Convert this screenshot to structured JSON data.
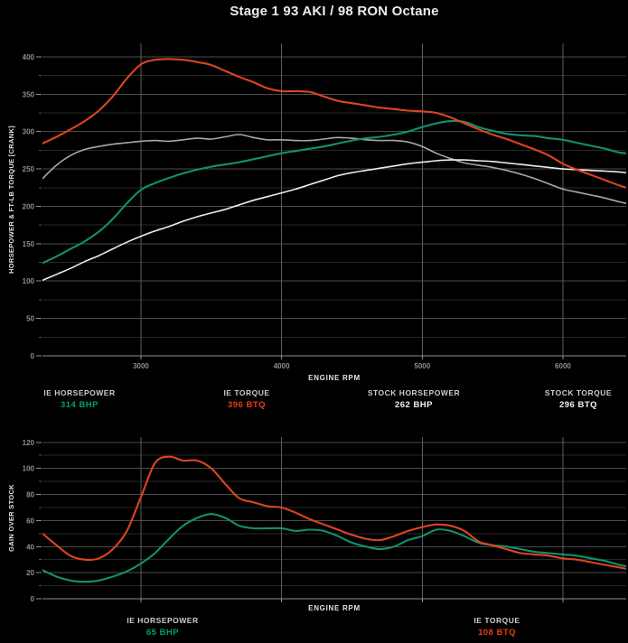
{
  "title": "Stage 1 93 AKI / 98 RON Octane",
  "colors": {
    "red": "#e83c12",
    "green": "#00a173",
    "white": "#f2f2f2",
    "red_line": "#dd4520",
    "green_line": "#10926b",
    "stock_hp_line": "#ededed",
    "stock_tq_line": "#a8a8a8"
  },
  "top_legend": [
    {
      "label": "IE HORSEPOWER",
      "value": "314 BHP",
      "color": "green"
    },
    {
      "label": "IE TORQUE",
      "value": "396 BTQ",
      "color": "red"
    },
    {
      "label": "STOCK HORSEPOWER",
      "value": "262 BHP",
      "color": "white"
    },
    {
      "label": "STOCK TORQUE",
      "value": "296 BTQ",
      "color": "white"
    }
  ],
  "bottom_legend": [
    {
      "label": "IE HORSEPOWER",
      "value": "65 BHP",
      "color": "green"
    },
    {
      "label": "IE TORQUE",
      "value": "108 BTQ",
      "color": "red"
    }
  ],
  "chart_data": [
    {
      "type": "line",
      "ylabel": "HORSEPOWER & FT-LB TORQUE [CRANK]",
      "xlabel": "ENGINE RPM",
      "xlim": [
        2300,
        6450
      ],
      "ylim": [
        0,
        418
      ],
      "grid": true,
      "xticks": [
        3000,
        4000,
        5000,
        6000
      ],
      "xtick_labels": [
        "3000",
        "4000",
        "5000",
        "6000"
      ],
      "yticks_major": [
        0,
        50,
        100,
        150,
        200,
        250,
        300,
        350,
        400
      ],
      "yticks_minor": [
        25,
        75,
        125,
        175,
        225,
        275,
        325,
        375
      ],
      "show_xtick_labels": true,
      "x": [
        2300,
        2400,
        2500,
        2600,
        2700,
        2800,
        2900,
        3000,
        3100,
        3200,
        3300,
        3400,
        3500,
        3600,
        3700,
        3800,
        3900,
        4000,
        4100,
        4200,
        4300,
        4400,
        4500,
        4600,
        4700,
        4800,
        4900,
        5000,
        5100,
        5200,
        5300,
        5400,
        5500,
        5600,
        5700,
        5800,
        5900,
        6000,
        6100,
        6200,
        6300,
        6400,
        6450
      ],
      "series": [
        {
          "name": "STOCK TORQUE",
          "color": "stock_tq_line",
          "values": [
            237,
            255,
            268,
            276,
            280,
            283,
            285,
            287,
            288,
            287,
            289,
            291,
            290,
            293,
            296,
            292,
            289,
            289,
            288,
            288,
            290,
            292,
            291,
            289,
            288,
            288,
            286,
            280,
            271,
            264,
            258,
            255,
            252,
            248,
            243,
            237,
            230,
            223,
            219,
            215,
            211,
            206,
            204
          ]
        },
        {
          "name": "STOCK HORSEPOWER",
          "color": "stock_hp_line",
          "values": [
            101,
            109,
            117,
            126,
            134,
            143,
            152,
            160,
            167,
            173,
            180,
            186,
            191,
            196,
            202,
            208,
            213,
            218,
            223,
            229,
            235,
            241,
            245,
            248,
            251,
            254,
            257,
            259,
            261,
            262,
            262,
            261,
            260,
            258,
            256,
            254,
            252,
            250,
            249,
            248,
            247,
            246,
            245
          ]
        },
        {
          "name": "IE HORSEPOWER",
          "color": "green_line",
          "values": [
            124,
            133,
            143,
            153,
            166,
            183,
            204,
            222,
            231,
            238,
            244,
            249,
            253,
            256,
            259,
            263,
            267,
            271,
            274,
            277,
            280,
            284,
            288,
            291,
            293,
            296,
            300,
            306,
            311,
            314,
            313,
            306,
            301,
            297,
            295,
            294,
            291,
            289,
            285,
            281,
            277,
            272,
            271
          ]
        },
        {
          "name": "IE TORQUE",
          "color": "red_line",
          "values": [
            284,
            293,
            303,
            314,
            328,
            347,
            371,
            390,
            396,
            397,
            396,
            393,
            389,
            381,
            373,
            366,
            358,
            354,
            354,
            353,
            347,
            341,
            338,
            335,
            332,
            330,
            328,
            327,
            325,
            319,
            311,
            303,
            296,
            290,
            283,
            276,
            268,
            257,
            249,
            242,
            235,
            228,
            225
          ]
        }
      ]
    },
    {
      "type": "line",
      "ylabel": "GAIN OVER STOCK",
      "xlabel": "ENGINE RPM",
      "xlim": [
        2300,
        6450
      ],
      "ylim": [
        0,
        124
      ],
      "grid": true,
      "xticks": [
        3000,
        4000,
        5000,
        6000
      ],
      "xtick_labels": [],
      "yticks_major": [
        0,
        20,
        40,
        60,
        80,
        100,
        120
      ],
      "yticks_minor": [
        10,
        30,
        50,
        70,
        90,
        110
      ],
      "show_xtick_labels": false,
      "x": [
        2300,
        2400,
        2500,
        2600,
        2700,
        2800,
        2900,
        3000,
        3100,
        3200,
        3300,
        3400,
        3500,
        3600,
        3700,
        3800,
        3900,
        4000,
        4100,
        4200,
        4300,
        4400,
        4500,
        4600,
        4700,
        4800,
        4900,
        5000,
        5100,
        5200,
        5300,
        5400,
        5500,
        5600,
        5700,
        5800,
        5900,
        6000,
        6100,
        6200,
        6300,
        6400,
        6450
      ],
      "series": [
        {
          "name": "IE HORSEPOWER GAIN",
          "color": "green_line",
          "values": [
            22,
            17,
            14,
            13,
            14,
            17,
            21,
            27,
            35,
            46,
            56,
            62,
            65,
            62,
            56,
            54,
            54,
            54,
            52,
            53,
            52,
            48,
            43,
            40,
            38,
            40,
            45,
            48,
            53,
            52,
            48,
            43,
            41,
            40,
            38,
            36,
            35,
            34,
            33,
            31,
            29,
            26,
            25
          ]
        },
        {
          "name": "IE TORQUE GAIN",
          "color": "red_line",
          "values": [
            50,
            41,
            33,
            30,
            31,
            38,
            52,
            78,
            104,
            109,
            106,
            106,
            100,
            88,
            77,
            74,
            71,
            70,
            66,
            61,
            57,
            53,
            49,
            46,
            45,
            48,
            52,
            55,
            57,
            56,
            52,
            44,
            41,
            38,
            35,
            34,
            33,
            31,
            30,
            28,
            26,
            24,
            23
          ]
        }
      ]
    }
  ]
}
